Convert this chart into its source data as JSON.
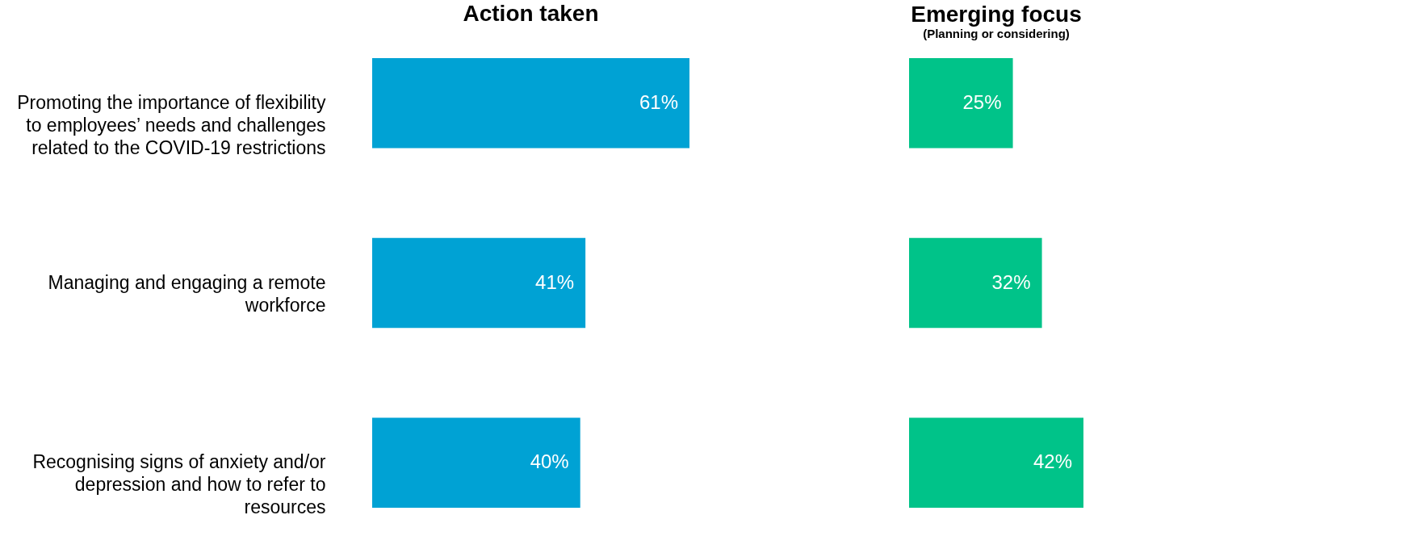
{
  "chart_data": [
    {
      "type": "bar",
      "orientation": "horizontal",
      "title": "Action taken",
      "categories": [
        "Promoting the importance of flexibility to employees’ needs and challenges related to the COVID-19 restrictions",
        "Managing and engaging a remote workforce",
        "Recognising signs of anxiety and/or depression and how to refer to resources"
      ],
      "values": [
        61,
        41,
        40
      ],
      "value_labels": [
        "61%",
        "41%",
        "40%"
      ],
      "color": "#00a2d4",
      "tick_labels": "y"
    },
    {
      "type": "bar",
      "orientation": "horizontal",
      "title": "Emerging focus",
      "subtitle": "(Planning or considering)",
      "values": [
        25,
        32,
        42
      ],
      "value_labels": [
        "25%",
        "32%",
        "42%"
      ],
      "color": "#00c389",
      "tick_labels": false
    }
  ]
}
